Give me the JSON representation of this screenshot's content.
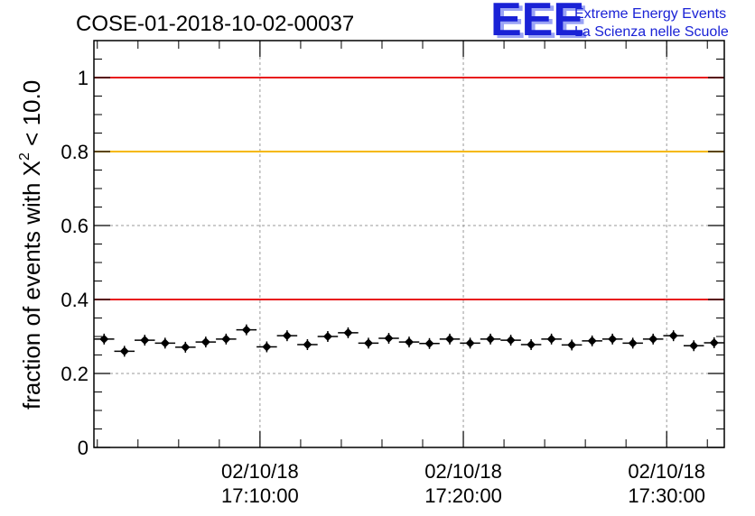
{
  "header": {
    "run_title": "COSE-01-2018-10-02-00037",
    "logo_letters": "EEE",
    "logo_line1": "Extreme Energy Events",
    "logo_line2": "La Scienza nelle Scuole"
  },
  "chart_data": {
    "type": "scatter",
    "title": "COSE-01-2018-10-02-00037",
    "xlabel": "",
    "ylabel_prefix": "fraction of events with ",
    "ylabel_symbol": "X",
    "ylabel_sup": "2",
    "ylabel_suffix": " < 10.0",
    "xlim": [
      "02/10/18 17:01:50",
      "02/10/18 17:32:50"
    ],
    "ylim": [
      0,
      1.1
    ],
    "grid": true,
    "yticks": [
      "0",
      "0.2",
      "0.4",
      "0.6",
      "0.8",
      "1"
    ],
    "ytick_values": [
      0,
      0.2,
      0.4,
      0.6,
      0.8,
      1.0
    ],
    "xticks": [
      {
        "date": "02/10/18",
        "time": "17:10:00"
      },
      {
        "date": "02/10/18",
        "time": "17:20:00"
      },
      {
        "date": "02/10/18",
        "time": "17:30:00"
      }
    ],
    "reference_lines": [
      {
        "y": 1.0,
        "color": "#e8171b"
      },
      {
        "y": 0.8,
        "color": "#f5b800"
      },
      {
        "y": 0.4,
        "color": "#e8171b"
      }
    ],
    "point_color": "#000000",
    "x": [
      "17:02:20",
      "17:03:20",
      "17:04:20",
      "17:05:20",
      "17:06:20",
      "17:07:20",
      "17:08:20",
      "17:09:20",
      "17:10:20",
      "17:11:20",
      "17:12:20",
      "17:13:20",
      "17:14:20",
      "17:15:20",
      "17:16:20",
      "17:17:20",
      "17:18:20",
      "17:19:20",
      "17:20:20",
      "17:21:20",
      "17:22:20",
      "17:23:20",
      "17:24:20",
      "17:25:20",
      "17:26:20",
      "17:27:20",
      "17:28:20",
      "17:29:20",
      "17:30:20",
      "17:31:20",
      "17:32:20"
    ],
    "values": [
      0.293,
      0.26,
      0.29,
      0.282,
      0.271,
      0.285,
      0.293,
      0.318,
      0.272,
      0.302,
      0.278,
      0.3,
      0.31,
      0.282,
      0.295,
      0.285,
      0.281,
      0.293,
      0.282,
      0.293,
      0.29,
      0.278,
      0.293,
      0.277,
      0.288,
      0.293,
      0.282,
      0.293,
      0.302,
      0.275,
      0.283
    ]
  }
}
